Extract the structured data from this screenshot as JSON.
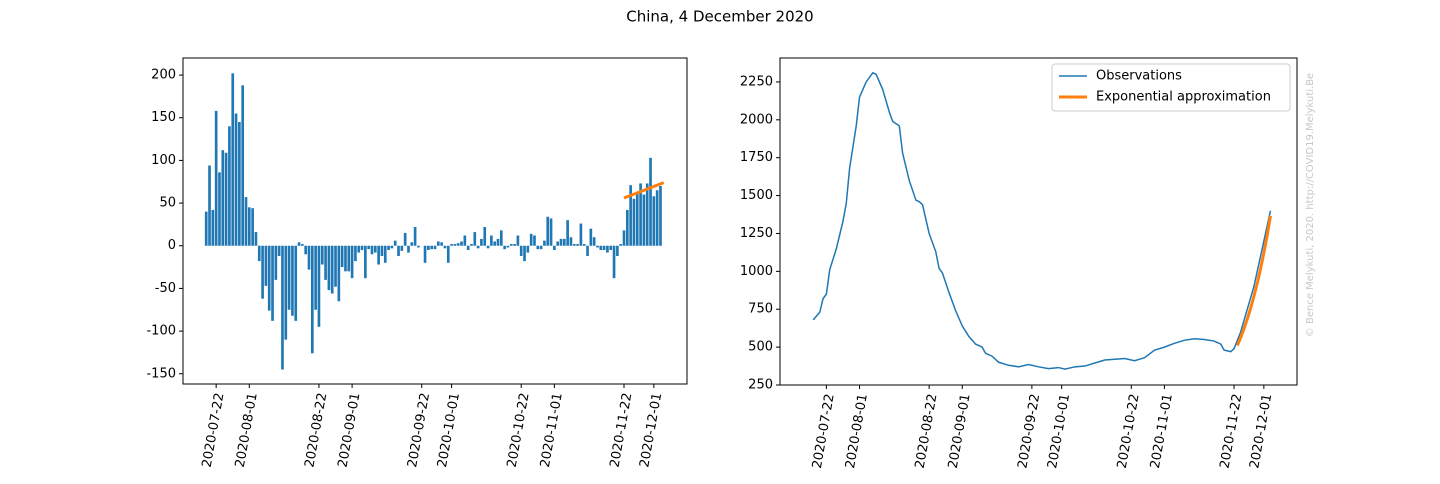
{
  "title": "China, 4 December 2020",
  "watermark": "© Bence Melykuti, 2020. http://COVID19.Melykuti.Be",
  "chart_data": [
    {
      "type": "bar",
      "color": "#1f77b4",
      "xlim": [
        "2020-07-12",
        "2020-12-11"
      ],
      "ylim": [
        -162,
        220
      ],
      "yticks": [
        -150,
        -100,
        -50,
        0,
        50,
        100,
        150,
        200
      ],
      "xticks": [
        "2020-07-22",
        "2020-08-01",
        "2020-08-22",
        "2020-09-01",
        "2020-09-22",
        "2020-10-01",
        "2020-10-22",
        "2020-11-01",
        "2020-11-22",
        "2020-12-01"
      ],
      "x": [
        "2020-07-19",
        "2020-07-20",
        "2020-07-21",
        "2020-07-22",
        "2020-07-23",
        "2020-07-24",
        "2020-07-25",
        "2020-07-26",
        "2020-07-27",
        "2020-07-28",
        "2020-07-29",
        "2020-07-30",
        "2020-07-31",
        "2020-08-01",
        "2020-08-02",
        "2020-08-03",
        "2020-08-04",
        "2020-08-05",
        "2020-08-06",
        "2020-08-07",
        "2020-08-08",
        "2020-08-09",
        "2020-08-10",
        "2020-08-11",
        "2020-08-12",
        "2020-08-13",
        "2020-08-14",
        "2020-08-15",
        "2020-08-16",
        "2020-08-17",
        "2020-08-18",
        "2020-08-19",
        "2020-08-20",
        "2020-08-21",
        "2020-08-22",
        "2020-08-23",
        "2020-08-24",
        "2020-08-25",
        "2020-08-26",
        "2020-08-27",
        "2020-08-28",
        "2020-08-29",
        "2020-08-30",
        "2020-08-31",
        "2020-09-01",
        "2020-09-02",
        "2020-09-03",
        "2020-09-04",
        "2020-09-05",
        "2020-09-06",
        "2020-09-07",
        "2020-09-08",
        "2020-09-09",
        "2020-09-10",
        "2020-09-11",
        "2020-09-12",
        "2020-09-13",
        "2020-09-14",
        "2020-09-15",
        "2020-09-16",
        "2020-09-17",
        "2020-09-18",
        "2020-09-19",
        "2020-09-20",
        "2020-09-21",
        "2020-09-22",
        "2020-09-23",
        "2020-09-24",
        "2020-09-25",
        "2020-09-26",
        "2020-09-27",
        "2020-09-28",
        "2020-09-29",
        "2020-09-30",
        "2020-10-01",
        "2020-10-02",
        "2020-10-03",
        "2020-10-04",
        "2020-10-05",
        "2020-10-06",
        "2020-10-07",
        "2020-10-08",
        "2020-10-09",
        "2020-10-10",
        "2020-10-11",
        "2020-10-12",
        "2020-10-13",
        "2020-10-14",
        "2020-10-15",
        "2020-10-16",
        "2020-10-17",
        "2020-10-18",
        "2020-10-19",
        "2020-10-20",
        "2020-10-21",
        "2020-10-22",
        "2020-10-23",
        "2020-10-24",
        "2020-10-25",
        "2020-10-26",
        "2020-10-27",
        "2020-10-28",
        "2020-10-29",
        "2020-10-30",
        "2020-10-31",
        "2020-11-01",
        "2020-11-02",
        "2020-11-03",
        "2020-11-04",
        "2020-11-05",
        "2020-11-06",
        "2020-11-07",
        "2020-11-08",
        "2020-11-09",
        "2020-11-10",
        "2020-11-11",
        "2020-11-12",
        "2020-11-13",
        "2020-11-14",
        "2020-11-15",
        "2020-11-16",
        "2020-11-17",
        "2020-11-18",
        "2020-11-19",
        "2020-11-20",
        "2020-11-21",
        "2020-11-22",
        "2020-11-23",
        "2020-11-24",
        "2020-11-25",
        "2020-11-26",
        "2020-11-27",
        "2020-11-28",
        "2020-11-29",
        "2020-11-30",
        "2020-12-01",
        "2020-12-02",
        "2020-12-03"
      ],
      "values": [
        40,
        94,
        42,
        158,
        86,
        112,
        109,
        140,
        202,
        155,
        145,
        188,
        57,
        45,
        44,
        16,
        -18,
        -62,
        -47,
        -76,
        -88,
        -40,
        -12,
        -145,
        -110,
        -75,
        -82,
        -88,
        4,
        2,
        -10,
        -28,
        -126,
        -75,
        -95,
        -22,
        -40,
        -52,
        -56,
        -48,
        -65,
        -25,
        -30,
        -30,
        -38,
        -18,
        -8,
        -5,
        -38,
        -4,
        -10,
        -8,
        -22,
        -12,
        -20,
        -5,
        -3,
        6,
        -12,
        -6,
        15,
        -8,
        4,
        22,
        -2,
        0,
        -20,
        -5,
        -4,
        -4,
        5,
        4,
        -3,
        -20,
        2,
        2,
        3,
        5,
        12,
        -5,
        2,
        16,
        -3,
        8,
        22,
        -3,
        12,
        5,
        8,
        18,
        -4,
        -2,
        2,
        2,
        12,
        -12,
        -18,
        -8,
        14,
        12,
        -4,
        -4,
        6,
        34,
        32,
        -5,
        5,
        8,
        8,
        30,
        10,
        2,
        2,
        26,
        2,
        -12,
        20,
        10,
        -2,
        -5,
        -5,
        -8,
        -5,
        -38,
        -12,
        2,
        18,
        42,
        71,
        55,
        62,
        73,
        60,
        73,
        103,
        58,
        65,
        70
      ],
      "overlay": {
        "color": "#ff7f0e",
        "x": [
          "2020-11-22",
          "2020-12-04"
        ],
        "values": [
          56,
          74
        ]
      }
    },
    {
      "type": "line",
      "xlim": [
        "2020-07-08",
        "2020-12-11"
      ],
      "ylim": [
        250,
        2408
      ],
      "yticks": [
        250,
        500,
        750,
        1000,
        1250,
        1500,
        1750,
        2000,
        2250
      ],
      "xticks": [
        "2020-07-22",
        "2020-08-01",
        "2020-08-22",
        "2020-09-01",
        "2020-09-22",
        "2020-10-01",
        "2020-10-22",
        "2020-11-01",
        "2020-11-22",
        "2020-12-01"
      ],
      "legend": "upper right",
      "series": [
        {
          "name": "Observations",
          "color": "#1f77b4",
          "width": 1.5,
          "x": [
            "2020-07-18",
            "2020-07-20",
            "2020-07-21",
            "2020-07-22",
            "2020-07-23",
            "2020-07-25",
            "2020-07-27",
            "2020-07-28",
            "2020-07-29",
            "2020-07-31",
            "2020-08-01",
            "2020-08-03",
            "2020-08-05",
            "2020-08-06",
            "2020-08-08",
            "2020-08-10",
            "2020-08-11",
            "2020-08-13",
            "2020-08-14",
            "2020-08-16",
            "2020-08-18",
            "2020-08-19",
            "2020-08-20",
            "2020-08-22",
            "2020-08-24",
            "2020-08-25",
            "2020-08-26",
            "2020-08-28",
            "2020-08-30",
            "2020-09-01",
            "2020-09-03",
            "2020-09-05",
            "2020-09-07",
            "2020-09-08",
            "2020-09-10",
            "2020-09-12",
            "2020-09-15",
            "2020-09-18",
            "2020-09-21",
            "2020-09-24",
            "2020-09-27",
            "2020-09-30",
            "2020-10-02",
            "2020-10-05",
            "2020-10-08",
            "2020-10-11",
            "2020-10-14",
            "2020-10-17",
            "2020-10-20",
            "2020-10-23",
            "2020-10-26",
            "2020-10-29",
            "2020-11-01",
            "2020-11-04",
            "2020-11-07",
            "2020-11-10",
            "2020-11-13",
            "2020-11-16",
            "2020-11-18",
            "2020-11-19",
            "2020-11-21",
            "2020-11-22",
            "2020-11-24",
            "2020-11-26",
            "2020-11-28",
            "2020-11-30",
            "2020-12-01",
            "2020-12-03"
          ],
          "values": [
            680,
            730,
            820,
            850,
            1010,
            1150,
            1330,
            1450,
            1680,
            1960,
            2150,
            2250,
            2310,
            2300,
            2200,
            2050,
            1990,
            1960,
            1780,
            1600,
            1470,
            1460,
            1440,
            1250,
            1130,
            1020,
            990,
            860,
            740,
            640,
            570,
            520,
            500,
            460,
            440,
            400,
            380,
            370,
            385,
            370,
            358,
            365,
            355,
            370,
            375,
            395,
            415,
            420,
            425,
            410,
            430,
            480,
            500,
            525,
            545,
            555,
            550,
            540,
            520,
            480,
            470,
            490,
            600,
            750,
            900,
            1100,
            1200,
            1400
          ]
        },
        {
          "name": "Exponential approximation",
          "color": "#ff7f0e",
          "width": 3,
          "x": [
            "2020-11-23",
            "2020-11-24",
            "2020-11-25",
            "2020-11-26",
            "2020-11-27",
            "2020-11-28",
            "2020-11-29",
            "2020-11-30",
            "2020-12-01",
            "2020-12-02",
            "2020-12-03"
          ],
          "values": [
            510,
            563,
            621,
            685,
            756,
            835,
            921,
            1016,
            1122,
            1238,
            1366
          ]
        }
      ]
    }
  ]
}
